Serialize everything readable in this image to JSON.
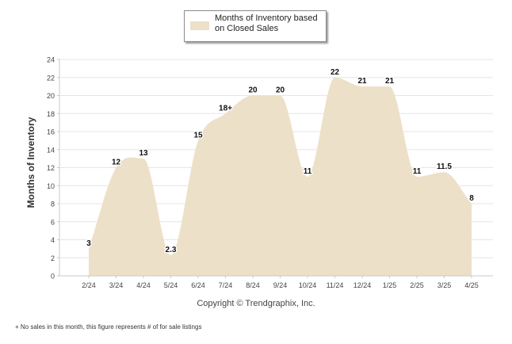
{
  "chart_data": {
    "type": "area",
    "ylabel": "Months of Inventory",
    "xlabel": "",
    "ylim": [
      0,
      24
    ],
    "yticks": [
      0,
      2,
      4,
      6,
      8,
      10,
      12,
      14,
      16,
      18,
      20,
      22,
      24
    ],
    "grid": true,
    "legend_position": "top-center",
    "categories": [
      "2/24",
      "3/24",
      "4/24",
      "5/24",
      "6/24",
      "7/24",
      "8/24",
      "9/24",
      "10/24",
      "11/24",
      "12/24",
      "1/25",
      "2/25",
      "3/25",
      "4/25"
    ],
    "series": [
      {
        "name": "Months of Inventory based on Closed Sales",
        "color": "#ede0c8",
        "values": [
          3,
          12,
          13,
          2.3,
          15,
          18,
          20,
          20,
          11,
          22,
          21,
          21,
          11,
          11.5,
          8
        ],
        "labels": [
          "3",
          "12",
          "13",
          "2.3",
          "15",
          "18+",
          "20",
          "20",
          "11",
          "22",
          "21",
          "21",
          "11",
          "11.5",
          "8"
        ]
      }
    ]
  },
  "copyright": "Copyright © Trendgraphix, Inc.",
  "footnote": "+  No sales in this month, this figure represents # of for sale listings",
  "colors": {
    "area": "#ede0c8",
    "grid": "#e6e6e6",
    "axis": "#c8c8c8"
  }
}
